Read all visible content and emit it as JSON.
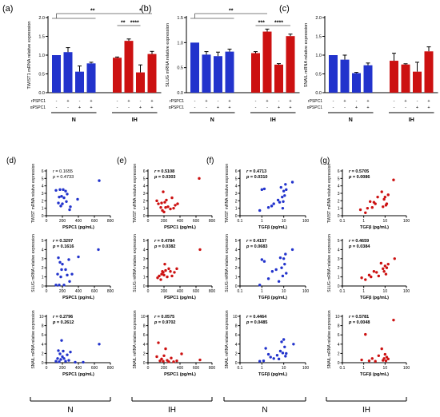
{
  "colors": {
    "blue": "#2233cc",
    "red": "#cc1111",
    "axis": "#000000",
    "line": "#555555"
  },
  "bar_panels": [
    {
      "letter": "(a)",
      "ylabel": "TWIST1 mRNA relative expression",
      "yticks": [
        "0.0",
        "0.5",
        "1.0",
        "1.5",
        "2.0"
      ],
      "ylim": [
        0,
        2
      ],
      "row_labels": [
        "rPSPC1",
        "αPSPC1"
      ],
      "signs_r": [
        "-",
        "+",
        "-",
        "+",
        "-",
        "+",
        "-",
        "+"
      ],
      "signs_a": [
        "-",
        "-",
        "+",
        "+",
        "-",
        "-",
        "+",
        "+"
      ],
      "groups": [
        "N",
        "IH"
      ],
      "sig": [
        {
          "from": 0,
          "to": 5,
          "level": 1,
          "label": "**",
          "bracket": true
        },
        {
          "from": 4,
          "to": 5,
          "level": 0,
          "label": "**"
        },
        {
          "from": 5,
          "to": 7,
          "level": 1,
          "label": "*"
        },
        {
          "from": 5,
          "to": 6,
          "level": 0,
          "label": "****"
        }
      ]
    },
    {
      "letter": "(b)",
      "ylabel": "SLUG mRNA relative expression",
      "yticks": [
        "0.0",
        "0.5",
        "1.0",
        "1.5"
      ],
      "ylim": [
        0,
        1.5
      ],
      "row_labels": [
        "rPSPC1",
        "αPSPC1"
      ],
      "signs_r": [
        "-",
        "+",
        "-",
        "+",
        "-",
        "+",
        "-",
        "+"
      ],
      "signs_a": [
        "-",
        "-",
        "+",
        "+",
        "-",
        "-",
        "+",
        "+"
      ],
      "groups": [
        "N",
        "IH"
      ],
      "sig": [
        {
          "from": 0,
          "to": 5,
          "level": 1,
          "label": "**",
          "bracket": true
        },
        {
          "from": 4,
          "to": 5,
          "level": 0,
          "label": "***"
        },
        {
          "from": 5,
          "to": 7,
          "level": 0,
          "label": "****"
        }
      ]
    },
    {
      "letter": "(c)",
      "ylabel": "SNAIL mRNA relative expression",
      "yticks": [
        "0.0",
        "0.5",
        "1.0",
        "1.5",
        "2.0"
      ],
      "ylim": [
        0,
        2
      ],
      "row_labels": [
        "rPSPC1",
        "αPSPC1"
      ],
      "signs_r": [
        "-",
        "+",
        "-",
        "+",
        "-",
        "+",
        "-",
        "+"
      ],
      "signs_a": [
        "-",
        "-",
        "+",
        "+",
        "-",
        "-",
        "+",
        "+"
      ],
      "groups": [
        "N",
        "IH"
      ],
      "sig": []
    }
  ],
  "scatter_columns": [
    {
      "letter": "(d)",
      "xlabel": "PSPC1 (pg/mL)",
      "group": "N"
    },
    {
      "letter": "(e)",
      "xlabel": "PSPC1 (pg/mL)",
      "group": "IH"
    },
    {
      "letter": "(f)",
      "xlabel": "TGFβ (pg/mL)",
      "group": "N"
    },
    {
      "letter": "(g)",
      "xlabel": "TGFβ (pg/mL)",
      "group": "IH"
    }
  ],
  "scatter_rows": [
    {
      "ylabel": "TWIST mRNA relative expression",
      "ylim": [
        0,
        6
      ],
      "yticks": [
        "0",
        "1",
        "2",
        "3",
        "4",
        "5",
        "6"
      ]
    },
    {
      "ylabel": "SLUG mRNA relative expression",
      "ylim": [
        0,
        5
      ],
      "yticks": [
        "0",
        "1",
        "2",
        "3",
        "4",
        "5"
      ]
    },
    {
      "ylabel": "SNAIL mRNA relative expression",
      "ylim": [
        0,
        10
      ],
      "yticks": [
        "0",
        "2",
        "4",
        "6",
        "8",
        "10"
      ]
    }
  ],
  "scatter_axes": {
    "lin": {
      "ticks": [
        "0",
        "200",
        "400",
        "600",
        "800"
      ],
      "range": [
        0,
        800
      ]
    },
    "log": {
      "ticks": [
        "0.1",
        "1",
        "10",
        "100"
      ],
      "range": [
        0.1,
        100
      ]
    }
  },
  "chart_data": [
    {
      "type": "bar",
      "panel": "(a)",
      "ylabel": "TWIST1 mRNA relative expression",
      "ylim": [
        0,
        2
      ],
      "series": [
        {
          "group": "N",
          "values": [
            1.0,
            1.08,
            0.56,
            0.78
          ],
          "errors": [
            0.0,
            0.12,
            0.15,
            0.03
          ]
        },
        {
          "group": "IH",
          "values": [
            0.93,
            1.38,
            0.54,
            1.03
          ],
          "errors": [
            0.02,
            0.05,
            0.2,
            0.07
          ]
        }
      ]
    },
    {
      "type": "bar",
      "panel": "(b)",
      "ylabel": "SLUG mRNA relative expression",
      "ylim": [
        0,
        1.5
      ],
      "series": [
        {
          "group": "N",
          "values": [
            1.0,
            0.76,
            0.73,
            0.82
          ],
          "errors": [
            0.0,
            0.06,
            0.08,
            0.05
          ]
        },
        {
          "group": "IH",
          "values": [
            0.79,
            1.22,
            0.56,
            1.13
          ],
          "errors": [
            0.03,
            0.05,
            0.02,
            0.04
          ]
        }
      ]
    },
    {
      "type": "bar",
      "panel": "(c)",
      "ylabel": "SNAIL mRNA relative expression",
      "ylim": [
        0,
        2
      ],
      "series": [
        {
          "group": "N",
          "values": [
            1.0,
            0.88,
            0.52,
            0.73
          ],
          "errors": [
            0.0,
            0.12,
            0.02,
            0.06
          ]
        },
        {
          "group": "IH",
          "values": [
            0.85,
            0.75,
            0.56,
            1.1
          ],
          "errors": [
            0.2,
            0.02,
            0.25,
            0.12
          ]
        }
      ]
    },
    {
      "type": "scatter",
      "panel": "d",
      "row": "TWIST",
      "xlabel": "PSPC1 (pg/mL)",
      "r": "0.1655",
      "p": "0.4733",
      "points": [
        [
          120,
          3.4
        ],
        [
          150,
          1.7
        ],
        [
          160,
          2.5
        ],
        [
          170,
          3.5
        ],
        [
          180,
          1.3
        ],
        [
          190,
          2.6
        ],
        [
          200,
          1.6
        ],
        [
          210,
          3.5
        ],
        [
          220,
          2.4
        ],
        [
          240,
          3.3
        ],
        [
          250,
          1.9
        ],
        [
          260,
          2.9
        ],
        [
          290,
          0.8
        ],
        [
          300,
          1.2
        ],
        [
          390,
          2.2
        ],
        [
          660,
          4.7
        ]
      ]
    },
    {
      "type": "scatter",
      "panel": "e",
      "row": "TWIST",
      "xlabel": "PSPC1 (pg/mL)",
      "r": "0.5108",
      "p": "0.0303",
      "points": [
        [
          110,
          2.0
        ],
        [
          130,
          1.6
        ],
        [
          160,
          1.1
        ],
        [
          170,
          1.7
        ],
        [
          180,
          0.7
        ],
        [
          190,
          3.2
        ],
        [
          200,
          0.5
        ],
        [
          210,
          1.8
        ],
        [
          220,
          1.1
        ],
        [
          230,
          2.1
        ],
        [
          250,
          1.2
        ],
        [
          280,
          0.9
        ],
        [
          300,
          2.4
        ],
        [
          320,
          1.0
        ],
        [
          340,
          1.4
        ],
        [
          370,
          1.6
        ],
        [
          640,
          5.0
        ]
      ]
    },
    {
      "type": "scatter",
      "panel": "f",
      "row": "TWIST",
      "xlabel": "TGFβ (pg/mL)",
      "r": "0.4713",
      "p": "0.0310",
      "points": [
        [
          0.8,
          0.7
        ],
        [
          1.0,
          3.5
        ],
        [
          1.3,
          3.6
        ],
        [
          2.0,
          1.1
        ],
        [
          2.8,
          1.3
        ],
        [
          3.5,
          1.6
        ],
        [
          5.5,
          2.1
        ],
        [
          6.5,
          1.8
        ],
        [
          7.5,
          3.8
        ],
        [
          8.5,
          2.5
        ],
        [
          9.0,
          1.0
        ],
        [
          9.5,
          1.9
        ],
        [
          10,
          3.3
        ],
        [
          11,
          2.7
        ],
        [
          12,
          4.2
        ],
        [
          13,
          3.5
        ],
        [
          25,
          4.5
        ]
      ]
    },
    {
      "type": "scatter",
      "panel": "g",
      "row": "TWIST",
      "xlabel": "TGFβ (pg/mL)",
      "r": "0.5705",
      "p": "0.0086",
      "points": [
        [
          0.7,
          0.8
        ],
        [
          1.2,
          0.4
        ],
        [
          1.5,
          1.0
        ],
        [
          2.0,
          1.9
        ],
        [
          2.5,
          1.1
        ],
        [
          3.0,
          1.8
        ],
        [
          3.5,
          1.6
        ],
        [
          4.5,
          2.5
        ],
        [
          7.0,
          3.2
        ],
        [
          8.0,
          1.2
        ],
        [
          9.0,
          2.2
        ],
        [
          10,
          2.5
        ],
        [
          11,
          1.4
        ],
        [
          12,
          1.6
        ],
        [
          14,
          2.8
        ],
        [
          25,
          4.8
        ]
      ]
    },
    {
      "type": "scatter",
      "panel": "d",
      "row": "SLUG",
      "xlabel": "PSPC1 (pg/mL)",
      "r": "0.3297",
      "p": "0.1616",
      "points": [
        [
          120,
          0.1
        ],
        [
          140,
          1.3
        ],
        [
          150,
          3.1
        ],
        [
          160,
          0.1
        ],
        [
          170,
          2.6
        ],
        [
          180,
          1.0
        ],
        [
          190,
          1.8
        ],
        [
          200,
          2.4
        ],
        [
          220,
          0.1
        ],
        [
          240,
          1.8
        ],
        [
          260,
          1.2
        ],
        [
          280,
          2.9
        ],
        [
          290,
          0.5
        ],
        [
          320,
          1.3
        ],
        [
          400,
          3.2
        ],
        [
          650,
          4.0
        ]
      ]
    },
    {
      "type": "scatter",
      "panel": "e",
      "row": "SLUG",
      "xlabel": "PSPC1 (pg/mL)",
      "r": "0.4784",
      "p": "0.0382",
      "points": [
        [
          120,
          0.9
        ],
        [
          140,
          1.1
        ],
        [
          160,
          0.7
        ],
        [
          170,
          1.3
        ],
        [
          180,
          1.6
        ],
        [
          190,
          1.5
        ],
        [
          200,
          1.2
        ],
        [
          210,
          2.4
        ],
        [
          220,
          1.7
        ],
        [
          240,
          1.0
        ],
        [
          260,
          1.9
        ],
        [
          280,
          1.6
        ],
        [
          300,
          1.1
        ],
        [
          330,
          1.5
        ],
        [
          360,
          1.9
        ],
        [
          650,
          4.0
        ]
      ]
    },
    {
      "type": "scatter",
      "panel": "f",
      "row": "SLUG",
      "xlabel": "TGFβ (pg/mL)",
      "r": "0.4157",
      "p": "0.0683",
      "points": [
        [
          0.8,
          0.1
        ],
        [
          1.0,
          2.9
        ],
        [
          1.3,
          2.7
        ],
        [
          2.0,
          0.8
        ],
        [
          3.0,
          1.6
        ],
        [
          4.5,
          1.8
        ],
        [
          6.0,
          0.5
        ],
        [
          7.0,
          3.1
        ],
        [
          8.0,
          2.0
        ],
        [
          9.0,
          1.1
        ],
        [
          10,
          3.0
        ],
        [
          11,
          2.4
        ],
        [
          12,
          3.5
        ],
        [
          13,
          1.4
        ],
        [
          25,
          4.0
        ]
      ]
    },
    {
      "type": "scatter",
      "panel": "g",
      "row": "SLUG",
      "xlabel": "TGFβ (pg/mL)",
      "r": "0.4659",
      "p": "0.0384",
      "points": [
        [
          0.8,
          0.9
        ],
        [
          1.2,
          0.7
        ],
        [
          1.8,
          1.2
        ],
        [
          2.2,
          1.0
        ],
        [
          3.0,
          1.6
        ],
        [
          4.0,
          1.5
        ],
        [
          5.0,
          1.1
        ],
        [
          6.5,
          2.5
        ],
        [
          8.0,
          1.9
        ],
        [
          9.0,
          1.6
        ],
        [
          10,
          2.2
        ],
        [
          11,
          1.3
        ],
        [
          12,
          2.0
        ],
        [
          14,
          2.4
        ],
        [
          28,
          3.0
        ]
      ]
    },
    {
      "type": "scatter",
      "panel": "d",
      "row": "SNAIL",
      "xlabel": "PSPC1 (pg/mL)",
      "r": "0.2796",
      "p": "0.2612",
      "points": [
        [
          120,
          0.3
        ],
        [
          140,
          0.9
        ],
        [
          150,
          2.6
        ],
        [
          160,
          0.2
        ],
        [
          170,
          1.9
        ],
        [
          180,
          0.7
        ],
        [
          190,
          4.8
        ],
        [
          200,
          1.3
        ],
        [
          210,
          2.5
        ],
        [
          220,
          0.9
        ],
        [
          240,
          0.3
        ],
        [
          260,
          1.7
        ],
        [
          280,
          0.5
        ],
        [
          300,
          2.3
        ],
        [
          360,
          0.1
        ],
        [
          460,
          0.1
        ],
        [
          660,
          4.0
        ]
      ]
    },
    {
      "type": "scatter",
      "panel": "e",
      "row": "SNAIL",
      "xlabel": "PSPC1 (pg/mL)",
      "r": "0.0575",
      "p": "0.9702",
      "points": [
        [
          110,
          1.3
        ],
        [
          130,
          4.3
        ],
        [
          150,
          0.4
        ],
        [
          170,
          0.8
        ],
        [
          190,
          0.3
        ],
        [
          200,
          1.5
        ],
        [
          220,
          3.0
        ],
        [
          240,
          0.5
        ],
        [
          260,
          0.2
        ],
        [
          290,
          1.0
        ],
        [
          320,
          0.2
        ],
        [
          360,
          0.4
        ],
        [
          420,
          1.9
        ],
        [
          650,
          0.6
        ]
      ]
    },
    {
      "type": "scatter",
      "panel": "f",
      "row": "SNAIL",
      "xlabel": "TGFβ (pg/mL)",
      "r": "0.4464",
      "p": "0.0485",
      "points": [
        [
          0.8,
          0.3
        ],
        [
          1.2,
          0.4
        ],
        [
          1.5,
          3.1
        ],
        [
          2.0,
          1.8
        ],
        [
          2.5,
          1.2
        ],
        [
          3.5,
          0.9
        ],
        [
          5.0,
          1.6
        ],
        [
          6.0,
          0.8
        ],
        [
          7.0,
          2.5
        ],
        [
          8.0,
          4.5
        ],
        [
          9.0,
          2.1
        ],
        [
          10,
          5.0
        ],
        [
          11,
          3.4
        ],
        [
          12,
          1.4
        ],
        [
          13,
          2.0
        ],
        [
          28,
          4.0
        ]
      ]
    },
    {
      "type": "scatter",
      "panel": "g",
      "row": "SNAIL",
      "xlabel": "TGFβ (pg/mL)",
      "r": "0.5781",
      "p": "0.0048",
      "points": [
        [
          0.8,
          0.6
        ],
        [
          1.2,
          6.1
        ],
        [
          1.8,
          0.4
        ],
        [
          2.5,
          0.9
        ],
        [
          3.5,
          0.3
        ],
        [
          5.0,
          1.5
        ],
        [
          7.0,
          3.0
        ],
        [
          8.0,
          0.5
        ],
        [
          9.0,
          0.9
        ],
        [
          10,
          1.8
        ],
        [
          11,
          0.4
        ],
        [
          12,
          1.2
        ],
        [
          14,
          0.8
        ],
        [
          25,
          9.2
        ]
      ]
    }
  ]
}
